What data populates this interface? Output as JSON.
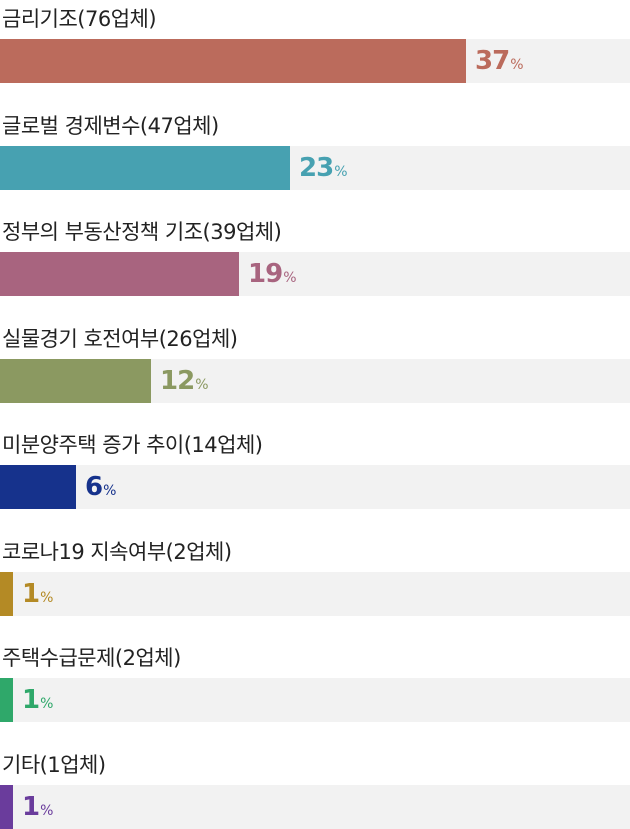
{
  "chart_data": {
    "type": "bar",
    "orientation": "horizontal",
    "categories": [
      "금리기조(76업체)",
      "글로벌 경제변수(47업체)",
      "정부의 부동산정책 기조(39업체)",
      "실물경기 호전여부(26업체)",
      "미분양주택 증가 추이(14업체)",
      "코로나19 지속여부(2업체)",
      "주택수급문제(2업체)",
      "기타(1업체)"
    ],
    "values": [
      37,
      23,
      19,
      12,
      6,
      1,
      1,
      1
    ],
    "unit": "%",
    "colors": [
      "#bb6b5c",
      "#47a1b1",
      "#a8647f",
      "#8b9961",
      "#16328c",
      "#b48a25",
      "#2fa86a",
      "#6a3c9c"
    ],
    "track_color": "#f2f2f2",
    "xlim": [
      0,
      50
    ],
    "title": "",
    "xlabel": "",
    "ylabel": "",
    "grid": false,
    "legend": "none"
  }
}
